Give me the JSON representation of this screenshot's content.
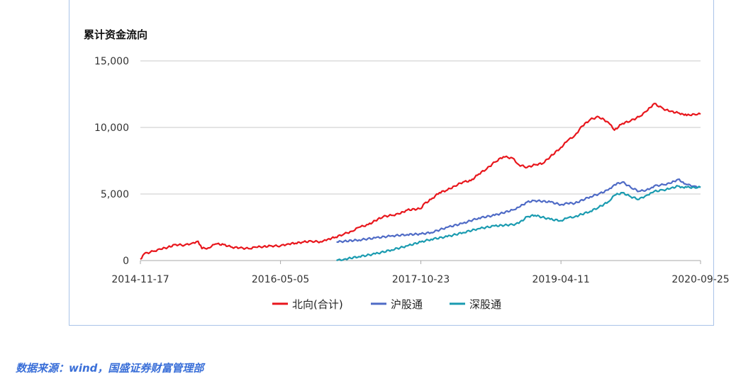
{
  "panel_title": "累计资金流向",
  "source_note": "数据来源：wind，国盛证券财富管理部",
  "chart_data": {
    "type": "line",
    "title": "累计资金流向",
    "xlabel": "",
    "ylabel": "",
    "x_tick_labels": [
      "2014-11-17",
      "2016-05-05",
      "2017-10-23",
      "2019-04-11",
      "2020-09-25"
    ],
    "x_range": [
      "2014-11-17",
      "2020-09-25"
    ],
    "y_ticks": [
      0,
      5000,
      10000,
      15000
    ],
    "y_tick_labels": [
      "0",
      "5,000",
      "10,000",
      "15,000"
    ],
    "ylim": [
      0,
      15000
    ],
    "grid": "horizontal",
    "legend_position": "bottom",
    "series": [
      {
        "name": "北向(合计)",
        "color": "#e8161c",
        "x": [
          "2014-11-17",
          "2014-12-01",
          "2015-01-05",
          "2015-02-02",
          "2015-03-02",
          "2015-04-01",
          "2015-05-04",
          "2015-06-01",
          "2015-06-25",
          "2015-07-10",
          "2015-08-03",
          "2015-09-01",
          "2015-10-01",
          "2015-11-02",
          "2015-12-01",
          "2016-01-04",
          "2016-02-01",
          "2016-03-01",
          "2016-04-01",
          "2016-05-05",
          "2016-06-01",
          "2016-07-01",
          "2016-08-01",
          "2016-09-01",
          "2016-10-10",
          "2016-11-01",
          "2016-12-01",
          "2017-01-03",
          "2017-02-01",
          "2017-03-01",
          "2017-04-05",
          "2017-05-02",
          "2017-06-01",
          "2017-07-03",
          "2017-08-01",
          "2017-09-01",
          "2017-10-23",
          "2017-11-01",
          "2017-12-01",
          "2018-01-02",
          "2018-02-01",
          "2018-03-01",
          "2018-04-02",
          "2018-05-02",
          "2018-06-01",
          "2018-07-02",
          "2018-08-01",
          "2018-09-03",
          "2018-10-08",
          "2018-11-01",
          "2018-12-03",
          "2019-01-02",
          "2019-02-01",
          "2019-03-01",
          "2019-04-11",
          "2019-05-06",
          "2019-06-03",
          "2019-07-01",
          "2019-08-01",
          "2019-09-02",
          "2019-10-08",
          "2019-11-01",
          "2019-12-02",
          "2020-01-02",
          "2020-02-03",
          "2020-03-02",
          "2020-04-01",
          "2020-05-06",
          "2020-06-01",
          "2020-07-01",
          "2020-07-20",
          "2020-08-03",
          "2020-09-01",
          "2020-09-25"
        ],
        "values": [
          100,
          500,
          700,
          850,
          1000,
          1200,
          1150,
          1300,
          1450,
          900,
          950,
          1250,
          1200,
          1000,
          950,
          900,
          1000,
          1050,
          1100,
          1100,
          1250,
          1300,
          1400,
          1450,
          1400,
          1600,
          1750,
          2000,
          2200,
          2500,
          2700,
          3000,
          3300,
          3400,
          3500,
          3800,
          3900,
          4200,
          4600,
          5100,
          5300,
          5600,
          5900,
          6000,
          6500,
          6900,
          7400,
          7800,
          7700,
          7200,
          7000,
          7200,
          7300,
          7800,
          8500,
          9000,
          9400,
          10100,
          10600,
          10800,
          10400,
          9800,
          10300,
          10500,
          10800,
          11200,
          11800,
          11400,
          11200,
          11100,
          11000,
          10900,
          11000,
          11000
        ]
      },
      {
        "name": "沪股通",
        "color": "#4f6bc6",
        "x": [
          "2016-12-05",
          "2017-01-03",
          "2017-03-01",
          "2017-05-02",
          "2017-07-03",
          "2017-09-01",
          "2017-10-23",
          "2017-12-01",
          "2018-02-01",
          "2018-04-02",
          "2018-06-01",
          "2018-08-01",
          "2018-10-08",
          "2018-11-01",
          "2018-12-03",
          "2019-01-02",
          "2019-03-01",
          "2019-04-11",
          "2019-05-06",
          "2019-06-03",
          "2019-08-01",
          "2019-09-02",
          "2019-10-08",
          "2019-11-01",
          "2019-12-02",
          "2020-01-02",
          "2020-02-03",
          "2020-03-02",
          "2020-03-23",
          "2020-04-01",
          "2020-05-06",
          "2020-06-01",
          "2020-07-01",
          "2020-07-20",
          "2020-08-03",
          "2020-09-01",
          "2020-09-25"
        ],
        "values": [
          1400,
          1450,
          1550,
          1700,
          1850,
          1950,
          2000,
          2100,
          2500,
          2800,
          3200,
          3400,
          3800,
          4000,
          4400,
          4500,
          4400,
          4200,
          4300,
          4300,
          4800,
          5000,
          5300,
          5700,
          5900,
          5500,
          5200,
          5300,
          5500,
          5600,
          5700,
          5800,
          6100,
          5900,
          5700,
          5600,
          5500
        ]
      },
      {
        "name": "深股通",
        "color": "#1a9bb0",
        "x": [
          "2016-12-05",
          "2017-01-03",
          "2017-03-01",
          "2017-05-02",
          "2017-07-03",
          "2017-09-01",
          "2017-10-23",
          "2017-12-01",
          "2018-02-01",
          "2018-04-02",
          "2018-06-01",
          "2018-08-01",
          "2018-10-08",
          "2018-11-01",
          "2018-12-03",
          "2019-01-02",
          "2019-03-01",
          "2019-04-11",
          "2019-05-06",
          "2019-06-03",
          "2019-08-01",
          "2019-09-02",
          "2019-10-08",
          "2019-11-01",
          "2019-12-02",
          "2020-01-02",
          "2020-02-03",
          "2020-03-02",
          "2020-03-23",
          "2020-04-01",
          "2020-05-06",
          "2020-06-01",
          "2020-07-01",
          "2020-07-20",
          "2020-08-03",
          "2020-09-01",
          "2020-09-25"
        ],
        "values": [
          0,
          100,
          300,
          500,
          800,
          1100,
          1400,
          1600,
          1800,
          2100,
          2400,
          2600,
          2700,
          2800,
          3300,
          3400,
          3100,
          3000,
          3200,
          3300,
          3700,
          4000,
          4400,
          4900,
          5100,
          4800,
          4600,
          4900,
          5100,
          5200,
          5300,
          5400,
          5600,
          5500,
          5500,
          5500,
          5500
        ]
      }
    ]
  }
}
